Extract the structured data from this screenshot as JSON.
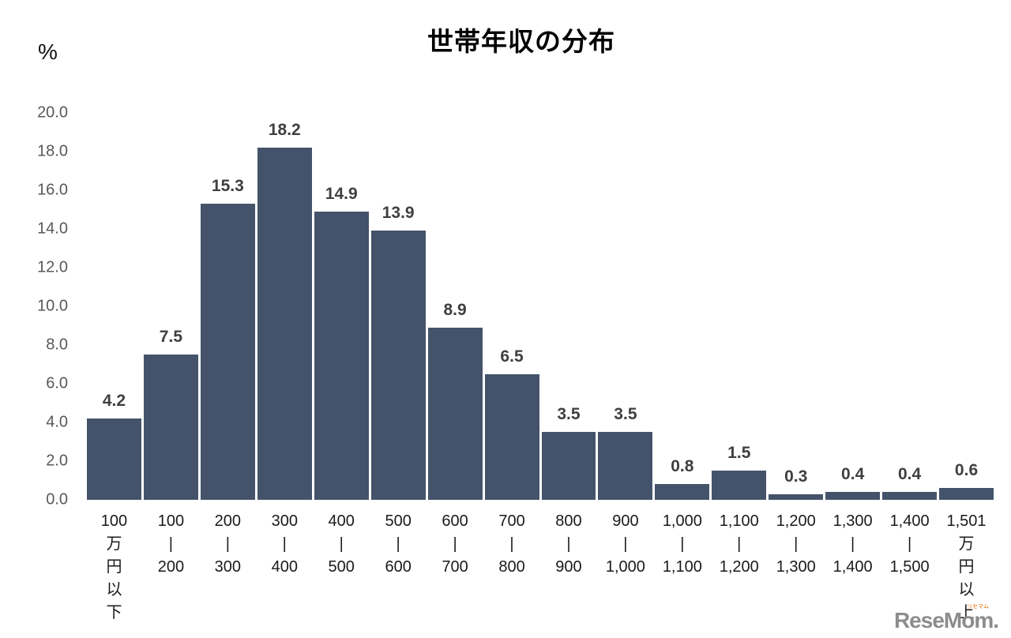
{
  "chart": {
    "title": "世帯年収の分布",
    "unit_label": "%"
  },
  "chart_data": {
    "type": "bar",
    "title": "世帯年収の分布",
    "xlabel": "",
    "ylabel": "%",
    "ylim": [
      0,
      20
    ],
    "ytick_step": 2.0,
    "ytick_labels": [
      "20.0",
      "18.0",
      "16.0",
      "14.0",
      "12.0",
      "10.0",
      "8.0",
      "6.0",
      "4.0",
      "2.0",
      "0.0"
    ],
    "grid": false,
    "legend": false,
    "bar_color": "#44536A",
    "categories": [
      "100万円以下",
      "100|200",
      "200|300",
      "300|400",
      "400|500",
      "500|600",
      "600|700",
      "700|800",
      "800|900",
      "900|1,000",
      "1,000|1,100",
      "1,100|1,200",
      "1,200|1,300",
      "1,300|1,400",
      "1,400|1,500",
      "1,501万円以上"
    ],
    "category_lines": [
      [
        "100",
        "万",
        "円",
        "以",
        "下"
      ],
      [
        "100",
        "|",
        "200"
      ],
      [
        "200",
        "|",
        "300"
      ],
      [
        "300",
        "|",
        "400"
      ],
      [
        "400",
        "|",
        "500"
      ],
      [
        "500",
        "|",
        "600"
      ],
      [
        "600",
        "|",
        "700"
      ],
      [
        "700",
        "|",
        "800"
      ],
      [
        "800",
        "|",
        "900"
      ],
      [
        "900",
        "|",
        "1,000"
      ],
      [
        "1,000",
        "|",
        "1,100"
      ],
      [
        "1,100",
        "|",
        "1,200"
      ],
      [
        "1,200",
        "|",
        "1,300"
      ],
      [
        "1,300",
        "|",
        "1,400"
      ],
      [
        "1,400",
        "|",
        "1,500"
      ],
      [
        "1,501",
        "万",
        "円",
        "以",
        "上"
      ]
    ],
    "values": [
      4.2,
      7.5,
      15.3,
      18.2,
      14.9,
      13.9,
      8.9,
      6.5,
      3.5,
      3.5,
      0.8,
      1.5,
      0.3,
      0.4,
      0.4,
      0.6
    ],
    "value_labels": [
      "4.2",
      "7.5",
      "15.3",
      "18.2",
      "14.9",
      "13.9",
      "8.9",
      "6.5",
      "3.5",
      "3.5",
      "0.8",
      "1.5",
      "0.3",
      "0.4",
      "0.4",
      "0.6"
    ]
  },
  "watermark": {
    "text": "ReseMom.",
    "ruby": "リセマム"
  }
}
